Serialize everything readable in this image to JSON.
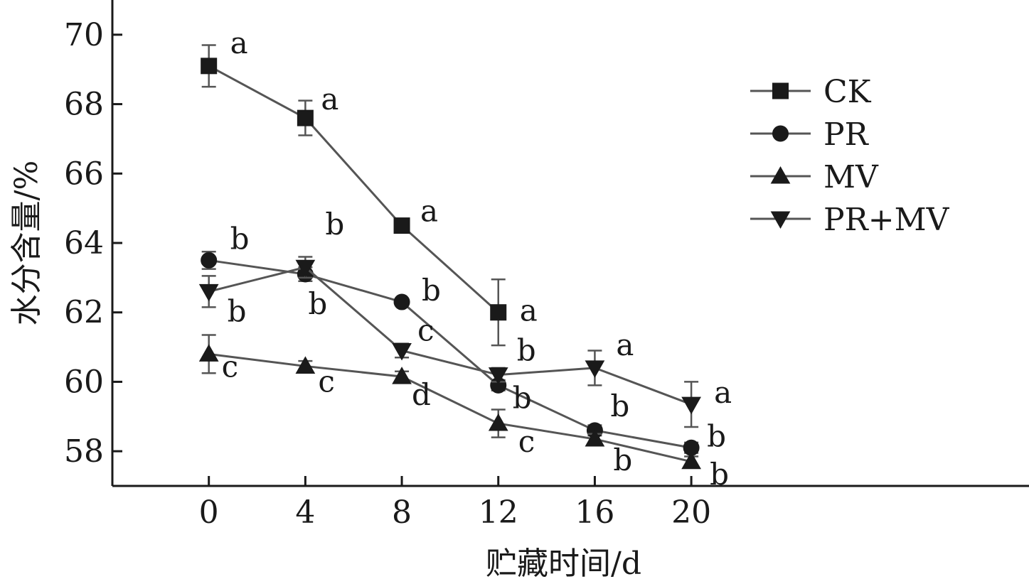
{
  "chart_data": {
    "type": "line",
    "xlabel": "贮藏时间/d",
    "ylabel": "水分含量/%",
    "x": [
      0,
      4,
      8,
      12,
      16,
      20
    ],
    "xlim": [
      -4,
      34
    ],
    "ylim": [
      57,
      71
    ],
    "xticks": [
      0,
      4,
      8,
      12,
      16,
      20
    ],
    "yticks": [
      58,
      60,
      62,
      64,
      66,
      68,
      70
    ],
    "grid": false,
    "legend_position": "top-right",
    "series": [
      {
        "name": "CK",
        "marker": "square",
        "values": [
          69.1,
          67.6,
          64.5,
          62.0,
          null,
          null
        ],
        "errors": [
          0.6,
          0.5,
          null,
          0.95,
          null,
          null
        ],
        "labels": [
          "a",
          "a",
          "a",
          "a",
          null,
          null
        ]
      },
      {
        "name": "PR",
        "marker": "circle",
        "values": [
          63.5,
          63.1,
          62.3,
          59.9,
          58.6,
          58.1
        ],
        "errors": [
          0.25,
          0.2,
          null,
          0.15,
          0.15,
          0.15
        ],
        "labels": [
          "b",
          "b",
          "b",
          "b",
          "b",
          "b"
        ]
      },
      {
        "name": "MV",
        "marker": "triangle-up",
        "values": [
          60.8,
          60.45,
          60.15,
          58.8,
          58.35,
          57.7
        ],
        "errors": [
          0.55,
          0.15,
          0.15,
          0.4,
          0.15,
          0.15
        ],
        "labels": [
          "c",
          "c",
          "d",
          "c",
          "b",
          "b"
        ]
      },
      {
        "name": "PR+MV",
        "marker": "triangle-down",
        "values": [
          62.6,
          63.3,
          60.9,
          60.2,
          60.4,
          59.35
        ],
        "errors": [
          0.45,
          0.3,
          0.2,
          0.2,
          0.5,
          0.65
        ],
        "labels": [
          "b",
          "b",
          "c",
          "b",
          "a",
          "a"
        ]
      }
    ]
  }
}
